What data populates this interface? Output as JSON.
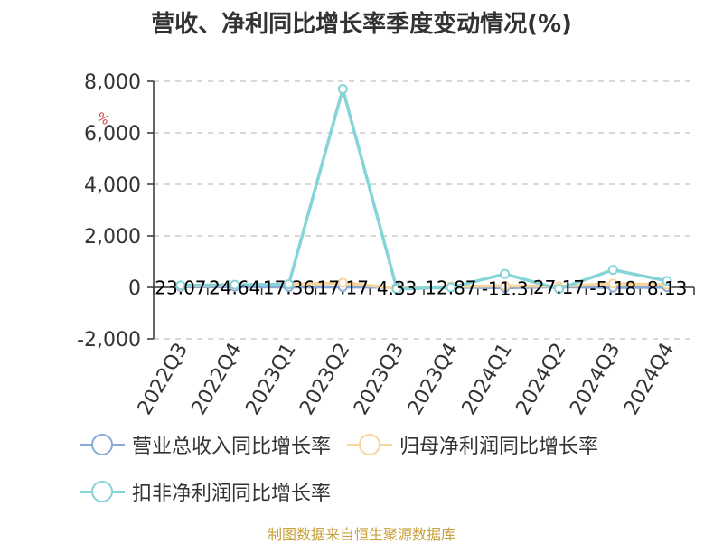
{
  "title": "营收、净利同比增长率季度变动情况(%)",
  "unit_mark": "%",
  "source": "制图数据来自恒生聚源数据库",
  "chart_data": {
    "type": "line",
    "title": "营收、净利同比增长率季度变动情况(%)",
    "categories": [
      "2022Q3",
      "2022Q4",
      "2023Q1",
      "2023Q2",
      "2023Q3",
      "2023Q4",
      "2024Q1",
      "2024Q2",
      "2024Q3",
      "2024Q4"
    ],
    "ylim": [
      -2000,
      8000
    ],
    "yticks": [
      -2000,
      0,
      2000,
      4000,
      6000,
      8000
    ],
    "ytick_labels": [
      "-2,000",
      "0",
      "2,000",
      "4,000",
      "6,000",
      "8,000"
    ],
    "grid": true,
    "legend_position": "bottom",
    "series": [
      {
        "name": "营业总收入同比增长率",
        "color": "#8aa8d8",
        "values": [
          23.07,
          24.64,
          17.36,
          17.17,
          4.33,
          12.87,
          -11.3,
          27.17,
          -5.18,
          8.13
        ],
        "labels": [
          "23.07",
          "24.64",
          "17.36",
          "17.17",
          "4.33",
          "12.87",
          "-11.3",
          "27.17",
          "-5.18",
          "8.13"
        ]
      },
      {
        "name": "归母净利润同比增长率",
        "color": "#f8d59a",
        "values": [
          60,
          90,
          110,
          180,
          -40,
          30,
          60,
          40,
          150,
          100
        ]
      },
      {
        "name": "扣非净利润同比增长率",
        "color": "#84d4d8",
        "values": [
          80,
          100,
          120,
          7700,
          -60,
          0,
          520,
          -60,
          680,
          250
        ]
      }
    ]
  }
}
